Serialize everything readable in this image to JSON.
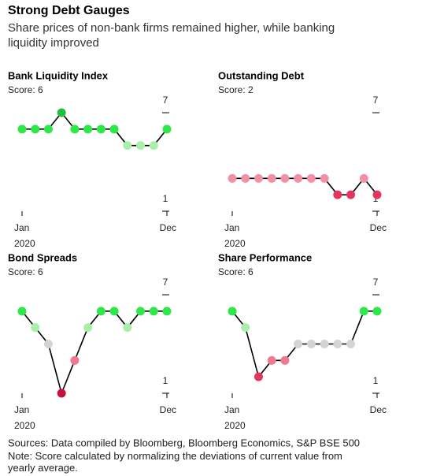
{
  "title": "Strong Debt Gauges",
  "subtitle": "Share prices of non-bank firms remained higher, while banking liquidity improved",
  "source": "Sources: Data compiled by Bloomberg, Bloomberg Economics, S&P BSE 500",
  "note": "Note: Score calculated by normalizing the deviations of current value from yearly average.",
  "chart_data": [
    {
      "type": "line",
      "title": "Bank Liquidity Index",
      "subtitle": "Score: 6",
      "categories": [
        "Jan",
        null,
        null,
        null,
        null,
        null,
        null,
        null,
        null,
        null,
        null,
        "Dec"
      ],
      "x_year": "2020",
      "ylim": [
        1,
        7
      ],
      "yticks": [
        1,
        7
      ],
      "line_color": "#000000",
      "series": [
        {
          "values": [
            6,
            6,
            6,
            7,
            6,
            6,
            6,
            6,
            5,
            5,
            5,
            6
          ],
          "colors": [
            "#2ee84a",
            "#2ee84a",
            "#2ee84a",
            "#1fbf3a",
            "#2ee84a",
            "#2ee84a",
            "#2ee84a",
            "#2ee84a",
            "#a8f0aa",
            "#a8f0aa",
            "#a8f0aa",
            "#2ee84a"
          ]
        }
      ]
    },
    {
      "type": "line",
      "title": "Outstanding Debt",
      "subtitle": "Score: 2",
      "categories": [
        "Jan",
        null,
        null,
        null,
        null,
        null,
        null,
        null,
        null,
        null,
        null,
        "Dec"
      ],
      "x_year": "2020",
      "ylim": [
        1,
        7
      ],
      "yticks": [
        1,
        7
      ],
      "line_color": "#000000",
      "series": [
        {
          "values": [
            3,
            3,
            3,
            3,
            3,
            3,
            3,
            3,
            2,
            2,
            3,
            2
          ],
          "colors": [
            "#f490a4",
            "#f490a4",
            "#f490a4",
            "#f490a4",
            "#f490a4",
            "#f490a4",
            "#f490a4",
            "#f490a4",
            "#e4355f",
            "#e4355f",
            "#f490a4",
            "#e4355f"
          ]
        }
      ]
    },
    {
      "type": "line",
      "title": "Bond Spreads",
      "subtitle": "Score: 6",
      "categories": [
        "Jan",
        null,
        null,
        null,
        null,
        null,
        null,
        null,
        null,
        null,
        null,
        "Dec"
      ],
      "x_year": "2020",
      "ylim": [
        1,
        7
      ],
      "yticks": [
        1,
        7
      ],
      "line_color": "#000000",
      "series": [
        {
          "values": [
            6,
            5,
            4,
            1,
            3,
            5,
            6,
            6,
            5,
            6,
            6,
            6
          ],
          "colors": [
            "#2ee84a",
            "#a8f0aa",
            "#d4d4d4",
            "#c8103c",
            "#f07890",
            "#a8f0aa",
            "#2ee84a",
            "#2ee84a",
            "#a8f0aa",
            "#2ee84a",
            "#2ee84a",
            "#2ee84a"
          ]
        }
      ]
    },
    {
      "type": "line",
      "title": "Share Performance",
      "subtitle": "Score: 6",
      "categories": [
        "Jan",
        null,
        null,
        null,
        null,
        null,
        null,
        null,
        null,
        null,
        null,
        "Dec"
      ],
      "x_year": "2020",
      "ylim": [
        1,
        7
      ],
      "yticks": [
        1,
        7
      ],
      "line_color": "#000000",
      "series": [
        {
          "values": [
            6,
            5,
            2,
            3,
            3,
            4,
            4,
            4,
            4,
            4,
            6,
            6
          ],
          "colors": [
            "#2ee84a",
            "#a8f0aa",
            "#e4355f",
            "#f07890",
            "#f07890",
            "#d4d4d4",
            "#d4d4d4",
            "#d4d4d4",
            "#d4d4d4",
            "#d4d4d4",
            "#2ee84a",
            "#2ee84a"
          ]
        }
      ]
    }
  ]
}
